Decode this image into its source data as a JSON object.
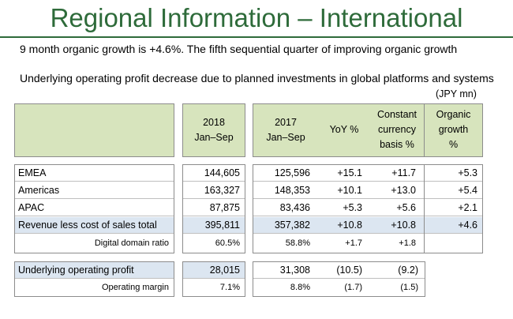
{
  "title": "Regional Information – International",
  "bullets": [
    "9 month organic growth is +4.6%. The fifth sequential quarter of improving organic growth",
    "Underlying operating profit decrease due to planned investments in global platforms and systems"
  ],
  "unit": "(JPY mn)",
  "headers": {
    "col2018": [
      "2018",
      "Jan–Sep"
    ],
    "col2017": [
      "2017",
      "Jan–Sep"
    ],
    "yoy": "YoY %",
    "constant": [
      "Constant",
      "currency",
      "basis %"
    ],
    "organic": [
      "Organic",
      "growth",
      "%"
    ]
  },
  "colors": {
    "title": "#2e6b3a",
    "header_fill": "#d7e4bd",
    "total_fill": "#dce6f1"
  },
  "table1": [
    {
      "label": "EMEA",
      "v2018": "144,605",
      "v2017": "125,596",
      "yoy": "+15.1",
      "constant": "+11.7",
      "organic": "+5.3"
    },
    {
      "label": "Americas",
      "v2018": "163,327",
      "v2017": "148,353",
      "yoy": "+10.1",
      "constant": "+13.0",
      "organic": "+5.4"
    },
    {
      "label": "APAC",
      "v2018": "87,875",
      "v2017": "83,436",
      "yoy": "+5.3",
      "constant": "+5.6",
      "organic": "+2.1"
    },
    {
      "label": "Revenue less cost of sales total",
      "v2018": "395,811",
      "v2017": "357,382",
      "yoy": "+10.8",
      "constant": "+10.8",
      "organic": "+4.6"
    },
    {
      "label": "Digital domain ratio",
      "v2018": "60.5%",
      "v2017": "58.8%",
      "yoy": "+1.7",
      "constant": "+1.8",
      "organic": ""
    }
  ],
  "table2": [
    {
      "label": "Underlying operating profit",
      "v2018": "28,015",
      "v2017": "31,308",
      "yoy": "(10.5)",
      "constant": "(9.2)"
    },
    {
      "label": "Operating margin",
      "v2018": "7.1%",
      "v2017": "8.8%",
      "yoy": "(1.7)",
      "constant": "(1.5)"
    }
  ]
}
